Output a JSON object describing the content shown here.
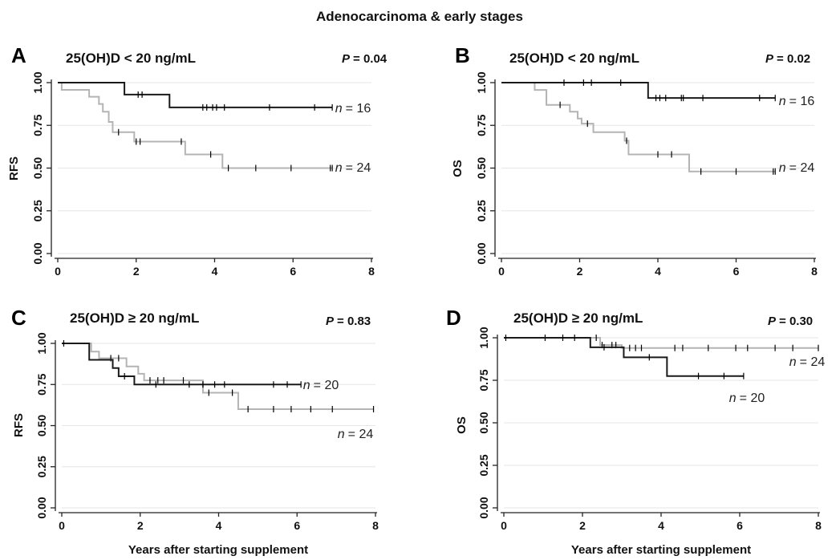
{
  "figure": {
    "title": "Adenocarcinoma & early stages"
  },
  "chart_data": [
    {
      "type": "line",
      "panel": "A",
      "subtitle": "25(OH)D < 20 ng/mL",
      "p_label": "P",
      "p_value": "= 0.04",
      "ylabel": "RFS",
      "xlabel": "",
      "xlim": [
        0,
        8
      ],
      "ylim": [
        0,
        1
      ],
      "xticks": [
        "0",
        "2",
        "4",
        "6",
        "8"
      ],
      "yticks": [
        "0.00",
        "0.25",
        "0.50",
        "0.75",
        "1.00"
      ],
      "grid": true,
      "series": [
        {
          "n_label": "n",
          "n_value": "= 16",
          "color": "#1a1a1a",
          "steps": [
            [
              0,
              1.0
            ],
            [
              1.7,
              0.93
            ],
            [
              2.85,
              0.855
            ],
            [
              7.0,
              0.855
            ]
          ],
          "censored": [
            [
              2.05,
              0.93
            ],
            [
              2.15,
              0.93
            ],
            [
              3.7,
              0.855
            ],
            [
              3.8,
              0.855
            ],
            [
              3.95,
              0.855
            ],
            [
              4.05,
              0.855
            ],
            [
              4.25,
              0.855
            ],
            [
              5.4,
              0.855
            ],
            [
              6.55,
              0.855
            ],
            [
              7.0,
              0.855
            ]
          ]
        },
        {
          "n_label": "n",
          "n_value": "= 24",
          "color": "#b4b4b4",
          "steps": [
            [
              0,
              1.0
            ],
            [
              0.1,
              0.958
            ],
            [
              0.8,
              0.917
            ],
            [
              1.05,
              0.875
            ],
            [
              1.15,
              0.83
            ],
            [
              1.3,
              0.77
            ],
            [
              1.4,
              0.71
            ],
            [
              1.95,
              0.655
            ],
            [
              3.25,
              0.58
            ],
            [
              4.2,
              0.5
            ],
            [
              7.0,
              0.5
            ]
          ],
          "censored": [
            [
              1.55,
              0.71
            ],
            [
              2.0,
              0.655
            ],
            [
              2.1,
              0.655
            ],
            [
              3.15,
              0.655
            ],
            [
              3.9,
              0.58
            ],
            [
              4.35,
              0.5
            ],
            [
              5.05,
              0.5
            ],
            [
              5.95,
              0.5
            ],
            [
              6.95,
              0.5
            ],
            [
              7.0,
              0.5
            ]
          ]
        }
      ]
    },
    {
      "type": "line",
      "panel": "B",
      "subtitle": "25(OH)D < 20 ng/mL",
      "p_label": "P",
      "p_value": "= 0.02",
      "ylabel": "OS",
      "xlabel": "",
      "xlim": [
        0,
        8
      ],
      "ylim": [
        0,
        1
      ],
      "xticks": [
        "0",
        "2",
        "4",
        "6",
        "8"
      ],
      "yticks": [
        "0.00",
        "0.25",
        "0.50",
        "0.75",
        "1.00"
      ],
      "grid": true,
      "series": [
        {
          "n_label": "n",
          "n_value": "= 16",
          "color": "#1a1a1a",
          "steps": [
            [
              0,
              1.0
            ],
            [
              3.75,
              0.91
            ],
            [
              7.0,
              0.91
            ]
          ],
          "censored": [
            [
              1.6,
              1.0
            ],
            [
              2.1,
              1.0
            ],
            [
              2.3,
              1.0
            ],
            [
              3.05,
              1.0
            ],
            [
              3.95,
              0.91
            ],
            [
              4.05,
              0.91
            ],
            [
              4.2,
              0.91
            ],
            [
              4.6,
              0.91
            ],
            [
              4.65,
              0.91
            ],
            [
              5.15,
              0.91
            ],
            [
              6.6,
              0.91
            ],
            [
              7.0,
              0.91
            ]
          ]
        },
        {
          "n_label": "n",
          "n_value": "= 24",
          "color": "#b4b4b4",
          "steps": [
            [
              0,
              1.0
            ],
            [
              0.85,
              0.957
            ],
            [
              1.15,
              0.87
            ],
            [
              1.75,
              0.83
            ],
            [
              1.95,
              0.79
            ],
            [
              2.05,
              0.76
            ],
            [
              2.35,
              0.71
            ],
            [
              3.15,
              0.66
            ],
            [
              3.25,
              0.58
            ],
            [
              4.8,
              0.48
            ],
            [
              7.0,
              0.48
            ]
          ],
          "censored": [
            [
              1.5,
              0.87
            ],
            [
              2.2,
              0.76
            ],
            [
              3.2,
              0.66
            ],
            [
              4.0,
              0.58
            ],
            [
              4.35,
              0.58
            ],
            [
              5.1,
              0.48
            ],
            [
              6.0,
              0.48
            ],
            [
              6.95,
              0.48
            ],
            [
              7.0,
              0.48
            ]
          ]
        }
      ]
    },
    {
      "type": "line",
      "panel": "C",
      "subtitle": "25(OH)D ≥ 20 ng/mL",
      "p_label": "P",
      "p_value": "= 0.83",
      "ylabel": "RFS",
      "xlabel": "Years after starting supplement",
      "xlim": [
        0,
        8
      ],
      "ylim": [
        0,
        1
      ],
      "xticks": [
        "0",
        "2",
        "4",
        "6",
        "8"
      ],
      "yticks": [
        "0.00",
        "0.25",
        "0.50",
        "0.75",
        "1.00"
      ],
      "grid": true,
      "series": [
        {
          "n_label": "n",
          "n_value": "= 20",
          "color": "#1a1a1a",
          "steps": [
            [
              0,
              1.0
            ],
            [
              0.7,
              0.9
            ],
            [
              1.3,
              0.85
            ],
            [
              1.45,
              0.8
            ],
            [
              1.85,
              0.75
            ],
            [
              6.1,
              0.75
            ]
          ],
          "censored": [
            [
              0.05,
              1.0
            ],
            [
              1.6,
              0.8
            ],
            [
              2.4,
              0.75
            ],
            [
              3.25,
              0.75
            ],
            [
              3.6,
              0.75
            ],
            [
              3.9,
              0.75
            ],
            [
              4.15,
              0.75
            ],
            [
              5.4,
              0.75
            ],
            [
              5.75,
              0.75
            ],
            [
              6.1,
              0.75
            ]
          ]
        },
        {
          "n_label": "n",
          "n_value": "= 24",
          "color": "#b4b4b4",
          "steps": [
            [
              0,
              1.0
            ],
            [
              0.75,
              0.95
            ],
            [
              0.95,
              0.91
            ],
            [
              1.65,
              0.86
            ],
            [
              1.95,
              0.815
            ],
            [
              2.1,
              0.775
            ],
            [
              3.6,
              0.7
            ],
            [
              4.5,
              0.6
            ],
            [
              7.95,
              0.6
            ]
          ],
          "censored": [
            [
              1.25,
              0.91
            ],
            [
              1.45,
              0.91
            ],
            [
              2.25,
              0.775
            ],
            [
              2.45,
              0.775
            ],
            [
              2.6,
              0.775
            ],
            [
              3.1,
              0.775
            ],
            [
              3.75,
              0.7
            ],
            [
              4.35,
              0.7
            ],
            [
              4.75,
              0.6
            ],
            [
              5.4,
              0.6
            ],
            [
              5.85,
              0.6
            ],
            [
              6.35,
              0.6
            ],
            [
              6.9,
              0.6
            ],
            [
              7.95,
              0.6
            ]
          ]
        }
      ]
    },
    {
      "type": "line",
      "panel": "D",
      "subtitle": "25(OH)D ≥ 20 ng/mL",
      "p_label": "P",
      "p_value": "= 0.30",
      "ylabel": "OS",
      "xlabel": "Years after starting supplement",
      "xlim": [
        0,
        8
      ],
      "ylim": [
        0,
        1
      ],
      "xticks": [
        "0",
        "2",
        "4",
        "6",
        "8"
      ],
      "yticks": [
        "0.00",
        "0.25",
        "0.50",
        "0.75",
        "1.00"
      ],
      "grid": true,
      "series": [
        {
          "n_label": "n",
          "n_value": "= 20",
          "color": "#1a1a1a",
          "steps": [
            [
              0,
              1.0
            ],
            [
              2.2,
              0.944
            ],
            [
              3.05,
              0.885
            ],
            [
              4.15,
              0.775
            ],
            [
              6.1,
              0.775
            ]
          ],
          "censored": [
            [
              0.05,
              1.0
            ],
            [
              1.5,
              1.0
            ],
            [
              1.8,
              1.0
            ],
            [
              2.55,
              0.944
            ],
            [
              3.7,
              0.885
            ],
            [
              4.95,
              0.775
            ],
            [
              5.6,
              0.775
            ],
            [
              6.1,
              0.775
            ]
          ]
        },
        {
          "n_label": "n",
          "n_value": "= 24",
          "color": "#b4b4b4",
          "steps": [
            [
              0,
              1.0
            ],
            [
              2.45,
              0.957
            ],
            [
              3.0,
              0.94
            ],
            [
              8.0,
              0.94
            ]
          ],
          "censored": [
            [
              1.05,
              1.0
            ],
            [
              2.35,
              1.0
            ],
            [
              2.5,
              0.957
            ],
            [
              2.75,
              0.957
            ],
            [
              2.85,
              0.957
            ],
            [
              3.2,
              0.94
            ],
            [
              3.35,
              0.94
            ],
            [
              3.5,
              0.94
            ],
            [
              4.35,
              0.94
            ],
            [
              4.55,
              0.94
            ],
            [
              5.2,
              0.94
            ],
            [
              5.9,
              0.94
            ],
            [
              6.2,
              0.94
            ],
            [
              6.9,
              0.94
            ],
            [
              7.35,
              0.94
            ],
            [
              8.0,
              0.94
            ]
          ]
        }
      ]
    }
  ]
}
